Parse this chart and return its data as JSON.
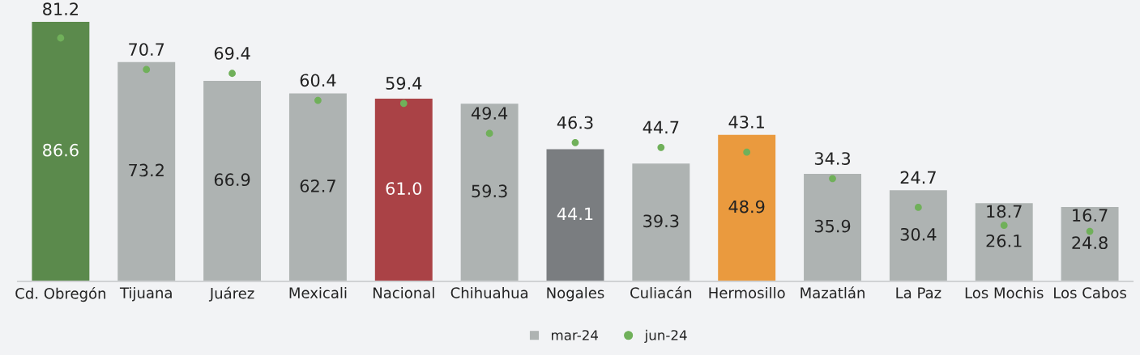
{
  "chart_data": {
    "type": "bar",
    "categories": [
      "Cd. Obregón",
      "Tijuana",
      "Juárez",
      "Mexicali",
      "Nacional",
      "Chihuahua",
      "Nogales",
      "Culiacán",
      "Hermosillo",
      "Mazatlán",
      "La Paz",
      "Los Mochis",
      "Los Cabos"
    ],
    "series": [
      {
        "name": "mar-24",
        "color": "#aeb3b2",
        "colors": [
          "#5b8a4c",
          "#aeb3b2",
          "#aeb3b2",
          "#aeb3b2",
          "#aa4246",
          "#aeb3b2",
          "#7a7d80",
          "#aeb3b2",
          "#ea9a3e",
          "#aeb3b2",
          "#aeb3b2",
          "#aeb3b2",
          "#aeb3b2"
        ],
        "values": [
          86.6,
          73.2,
          66.9,
          62.7,
          61.0,
          59.3,
          44.1,
          39.3,
          48.9,
          35.9,
          30.4,
          26.1,
          24.8
        ],
        "value_labels": [
          "86.6",
          "73.2",
          "66.9",
          "62.7",
          "61.0",
          "59.3",
          "44.1",
          "39.3",
          "48.9",
          "35.9",
          "30.4",
          "26.1",
          "24.8"
        ]
      },
      {
        "name": "jun-24",
        "type": "scatter",
        "color": "#70b05a",
        "values": [
          81.2,
          70.7,
          69.4,
          60.4,
          59.4,
          49.4,
          46.3,
          44.7,
          43.1,
          34.3,
          24.7,
          18.7,
          16.7
        ],
        "value_labels": [
          "81.2",
          "70.7",
          "69.4",
          "60.4",
          "59.4",
          "49.4",
          "46.3",
          "44.7",
          "43.1",
          "34.3",
          "24.7",
          "18.7",
          "16.7"
        ]
      }
    ],
    "legend": "bottom",
    "grid": false,
    "tick_labels": "x",
    "marker": "circle"
  }
}
